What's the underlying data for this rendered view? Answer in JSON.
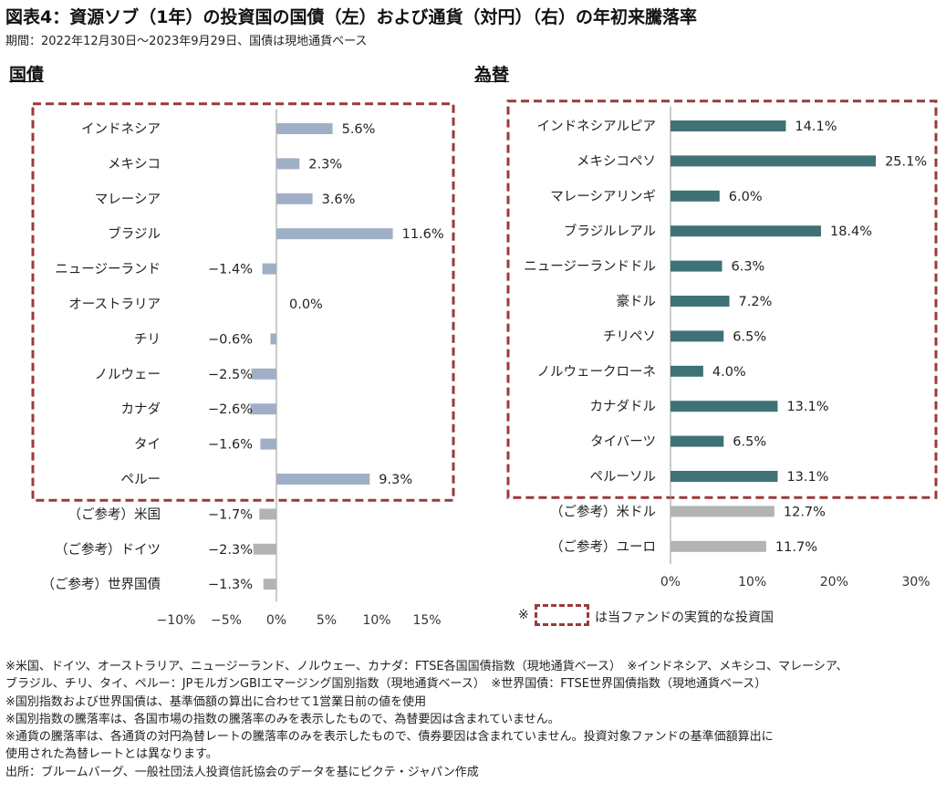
{
  "title": "図表4：資源ソブ（1年）の投資国の国債（左）および通貨（対円）（右）の年初来騰落率",
  "subtitle": "期間：2022年12月30日～2023年9月29日、国債は現地通貨ベース",
  "chart_data": [
    {
      "type": "bar",
      "orientation": "horizontal",
      "section_label": "国債",
      "categories": [
        "インドネシア",
        "メキシコ",
        "マレーシア",
        "ブラジル",
        "ニュージーランド",
        "オーストラリア",
        "チリ",
        "ノルウェー",
        "カナダ",
        "タイ",
        "ペルー",
        "（ご参考）米国",
        "（ご参考）ドイツ",
        "（ご参考）世界国債"
      ],
      "values": [
        5.6,
        2.3,
        3.6,
        11.6,
        -1.4,
        0.0,
        -0.6,
        -2.5,
        -2.6,
        -1.6,
        9.3,
        -1.7,
        -2.3,
        -1.3
      ],
      "value_labels": [
        "5.6%",
        "2.3%",
        "3.6%",
        "11.6%",
        "−1.4%",
        "0.0%",
        "−0.6%",
        "−2.5%",
        "−2.6%",
        "−1.6%",
        "9.3%",
        "−1.7%",
        "−2.3%",
        "−1.3%"
      ],
      "xlim": [
        -10,
        15
      ],
      "xticks": [
        -10,
        -5,
        0,
        5,
        10,
        15
      ],
      "xtick_labels": [
        "−10%",
        "−5%",
        "0%",
        "5%",
        "10%",
        "15%"
      ],
      "highlighted_count": 11,
      "colors": {
        "highlighted": "#9fb0c6",
        "reference": "#b3b3b3"
      }
    },
    {
      "type": "bar",
      "orientation": "horizontal",
      "section_label": "為替",
      "categories": [
        "インドネシアルピア",
        "メキシコペソ",
        "マレーシアリンギ",
        "ブラジルレアル",
        "ニュージーランドドル",
        "豪ドル",
        "チリペソ",
        "ノルウェークローネ",
        "カナダドル",
        "タイバーツ",
        "ペルーソル",
        "（ご参考）米ドル",
        "（ご参考）ユーロ"
      ],
      "values": [
        14.1,
        25.1,
        6.0,
        18.4,
        6.3,
        7.2,
        6.5,
        4.0,
        13.1,
        6.5,
        13.1,
        12.7,
        11.7
      ],
      "value_labels": [
        "14.1%",
        "25.1%",
        "6.0%",
        "18.4%",
        "6.3%",
        "7.2%",
        "6.5%",
        "4.0%",
        "13.1%",
        "6.5%",
        "13.1%",
        "12.7%",
        "11.7%"
      ],
      "xlim": [
        0,
        30
      ],
      "xticks": [
        0,
        10,
        20,
        30
      ],
      "xtick_labels": [
        "0%",
        "10%",
        "20%",
        "30%"
      ],
      "highlighted_count": 11,
      "colors": {
        "highlighted": "#3f7276",
        "reference": "#b3b3b3"
      }
    }
  ],
  "legend": {
    "prefix": "※",
    "text": "は当ファンドの実質的な投資国",
    "box_color": "#9b3a3a"
  },
  "notes": [
    "※米国、ドイツ、オーストラリア、ニュージーランド、ノルウェー、カナダ：FTSE各国国債指数（現地通貨ベース）　※インドネシア、メキシコ、マレーシア、",
    "ブラジル、チリ、タイ、ペルー：JPモルガンGBIエマージング国別指数（現地通貨ベース）　※世界国債：FTSE世界国債指数（現地通貨ベース）",
    "※国別指数および世界国債は、基準価額の算出に合わせて1営業日前の値を使用",
    "※国別指数の騰落率は、各国市場の指数の騰落率のみを表示したもので、為替要因は含まれていません。",
    "※通貨の騰落率は、各通貨の対円為替レートの騰落率のみを表示したもので、債券要因は含まれていません。投資対象ファンドの基準価額算出に",
    "使用された為替レートとは異なります。",
    "出所：ブルームバーグ、一般社団法人投資信託協会のデータを基にピクテ・ジャパン作成"
  ]
}
